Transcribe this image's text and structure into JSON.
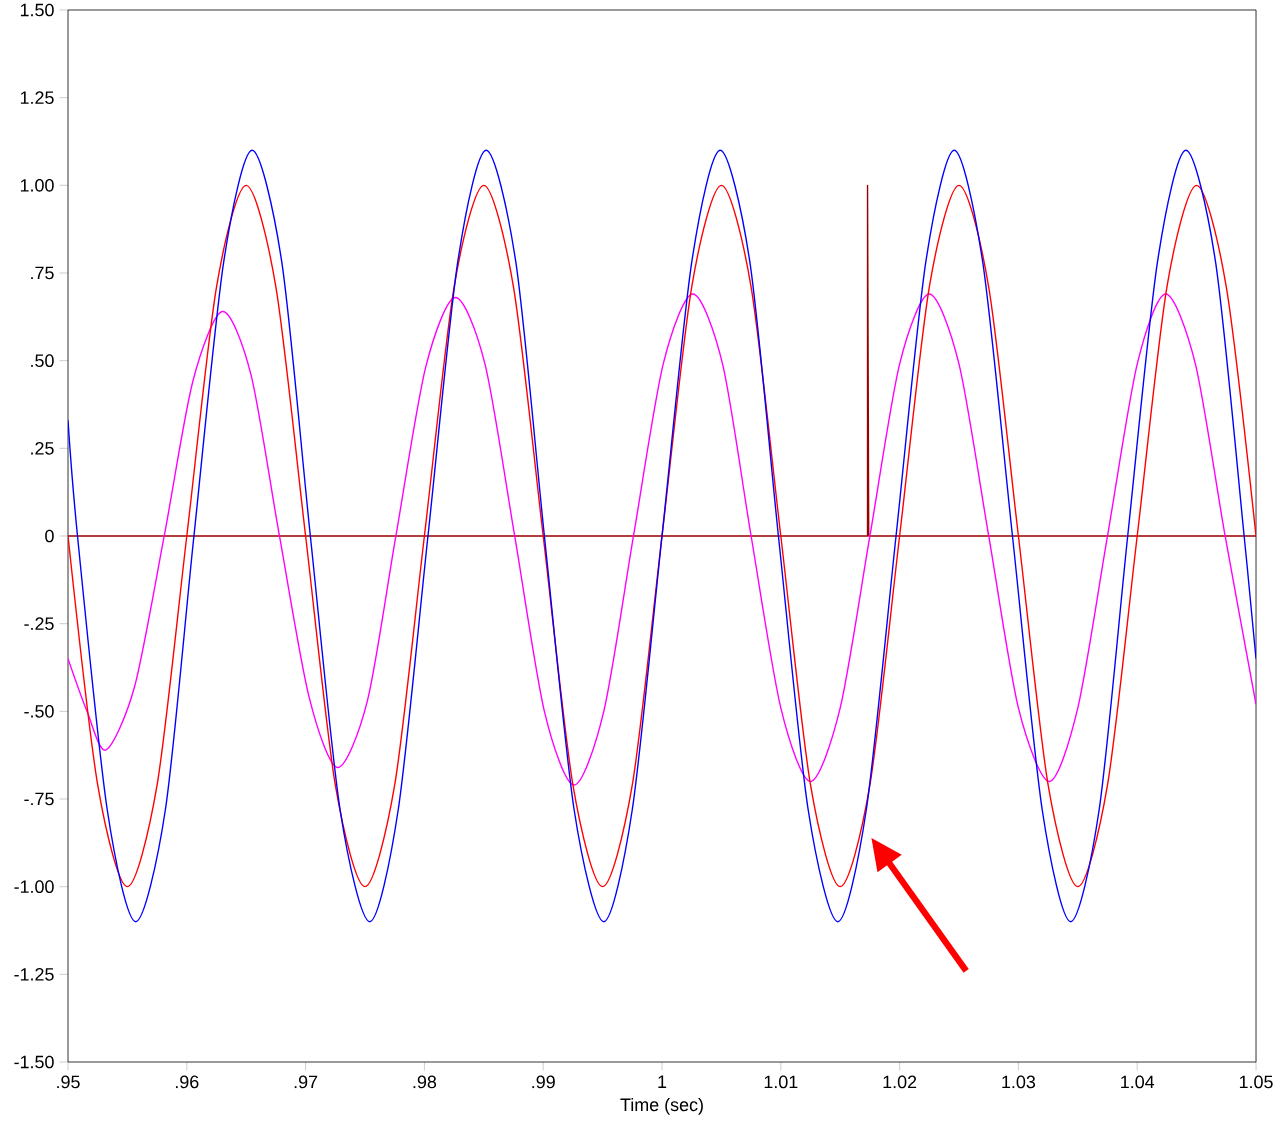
{
  "chart_data": {
    "type": "line",
    "xlabel": "Time (sec)",
    "xlim": [
      0.95,
      1.05
    ],
    "ylim": [
      -1.5,
      1.5
    ],
    "xticks": [
      {
        "value": 0.95,
        "label": ".95"
      },
      {
        "value": 0.96,
        "label": ".96"
      },
      {
        "value": 0.97,
        "label": ".97"
      },
      {
        "value": 0.98,
        "label": ".98"
      },
      {
        "value": 0.99,
        "label": ".99"
      },
      1,
      1.01,
      1.02,
      1.03,
      1.04,
      1.05
    ],
    "yticks": [
      {
        "value": -1.5,
        "label": "-1.50"
      },
      {
        "value": -1.25,
        "label": "-1.25"
      },
      {
        "value": -1.0,
        "label": "-1.00"
      },
      {
        "value": -0.75,
        "label": "-.75"
      },
      {
        "value": -0.5,
        "label": "-.50"
      },
      {
        "value": -0.25,
        "label": "-.25"
      },
      0,
      {
        "value": 0.25,
        "label": ".25"
      },
      {
        "value": 0.5,
        "label": ".50"
      },
      {
        "value": 0.75,
        "label": ".75"
      },
      {
        "value": 1.0,
        "label": "1.00"
      },
      {
        "value": 1.25,
        "label": "1.25"
      },
      {
        "value": 1.5,
        "label": "1.50"
      }
    ],
    "grid": false,
    "marker": "none",
    "line_style": "solid",
    "series": [
      {
        "color": "#990000",
        "x": [
          0.95,
          1.0173,
          1.0173,
          1.0174,
          1.05
        ],
        "values": [
          0,
          0,
          1,
          0,
          0
        ]
      },
      {
        "color": "#ff00ff",
        "x": [
          0.95,
          0.9516,
          0.9532,
          0.9556,
          0.9581,
          0.9605,
          0.963,
          0.9654,
          0.9678,
          0.9703,
          0.9727,
          0.9752,
          0.9776,
          0.9801,
          0.9826,
          0.9851,
          0.9876,
          0.9901,
          0.9926,
          0.9951,
          0.9976,
          1.0001,
          1.0026,
          1.0051,
          1.0075,
          1.01,
          1.0125,
          1.015,
          1.0175,
          1.02,
          1.0225,
          1.025,
          1.0275,
          1.03,
          1.0326,
          1.035,
          1.0375,
          1.04,
          1.0424,
          1.0449,
          1.0474,
          1.05
        ],
        "values": [
          -0.35,
          -0.5,
          -0.61,
          -0.43,
          0,
          0.44,
          0.64,
          0.46,
          0,
          -0.46,
          -0.66,
          -0.47,
          0,
          0.48,
          0.68,
          0.49,
          0,
          -0.5,
          -0.71,
          -0.5,
          0,
          0.49,
          0.69,
          0.49,
          0,
          -0.49,
          -0.7,
          -0.49,
          0,
          0.49,
          0.69,
          0.49,
          0,
          -0.49,
          -0.7,
          -0.49,
          0,
          0.49,
          0.69,
          0.49,
          0,
          -0.48
        ]
      },
      {
        "color": "#ff0000",
        "x": [
          0.95,
          0.9525,
          0.955,
          0.9575,
          0.96,
          0.9625,
          0.965,
          0.9675,
          0.97,
          0.9725,
          0.975,
          0.9775,
          0.98,
          0.9825,
          0.985,
          0.9875,
          0.99,
          0.9925,
          0.995,
          0.9975,
          1.0,
          1.0025,
          1.005,
          1.0075,
          1.01,
          1.0125,
          1.015,
          1.0175,
          1.02,
          1.0225,
          1.025,
          1.0275,
          1.03,
          1.0325,
          1.035,
          1.0375,
          1.04,
          1.0425,
          1.045,
          1.0475,
          1.05
        ],
        "values": [
          0,
          -0.71,
          -1,
          -0.71,
          0,
          0.71,
          1,
          0.71,
          0,
          -0.71,
          -1,
          -0.71,
          0,
          0.71,
          1,
          0.71,
          0,
          -0.71,
          -1,
          -0.71,
          0,
          0.71,
          1,
          0.71,
          0,
          -0.71,
          -1,
          -0.71,
          0,
          0.71,
          1,
          0.71,
          0,
          -0.71,
          -1,
          -0.71,
          0,
          0.71,
          1,
          0.71,
          0
        ]
      },
      {
        "color": "#0000ff",
        "x": [
          0.95,
          0.9508,
          0.9533,
          0.9557,
          0.9582,
          0.9606,
          0.9631,
          0.9655,
          0.968,
          0.9704,
          0.9729,
          0.9754,
          0.9778,
          0.9803,
          0.9828,
          0.9852,
          0.9877,
          0.9901,
          0.9926,
          0.9951,
          0.9975,
          1.0,
          1.0025,
          1.0049,
          1.0074,
          1.0098,
          1.0123,
          1.0148,
          1.0172,
          1.0197,
          1.0222,
          1.0246,
          1.027,
          1.0295,
          1.032,
          1.0344,
          1.0368,
          1.0392,
          1.0417,
          1.0441,
          1.0466,
          1.049,
          1.05
        ],
        "values": [
          0.33,
          0,
          -0.78,
          -1.1,
          -0.78,
          0,
          0.78,
          1.1,
          0.78,
          0,
          -0.78,
          -1.1,
          -0.78,
          0,
          0.78,
          1.1,
          0.78,
          0,
          -0.78,
          -1.1,
          -0.78,
          0,
          0.78,
          1.1,
          0.78,
          0,
          -0.78,
          -1.1,
          -0.78,
          0,
          0.78,
          1.1,
          0.78,
          0,
          -0.78,
          -1.1,
          -0.78,
          0,
          0.78,
          1.1,
          0.78,
          0,
          -0.35
        ]
      }
    ]
  }
}
